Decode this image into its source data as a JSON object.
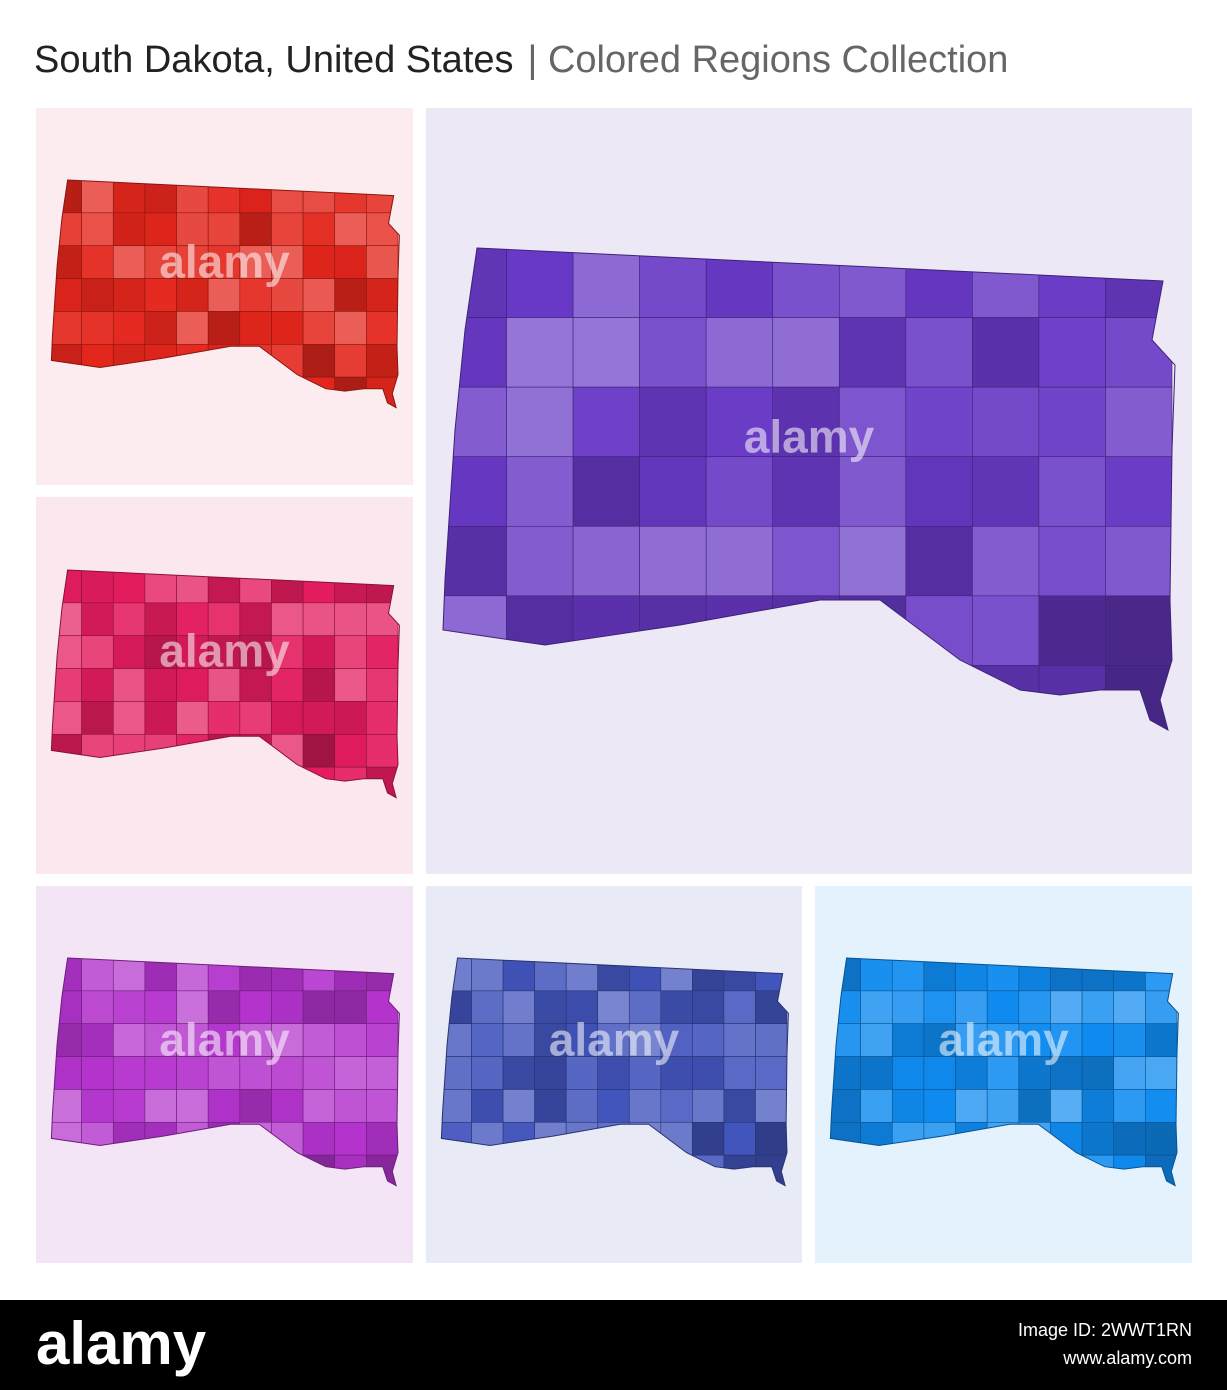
{
  "header": {
    "title": "South Dakota, United States",
    "subtitle": "| Colored Regions Collection"
  },
  "watermark": "alamy",
  "footer": {
    "logo": "alamy",
    "image_id": "Image ID: 2WWT1RN",
    "url": "www.alamy.com"
  }
}
